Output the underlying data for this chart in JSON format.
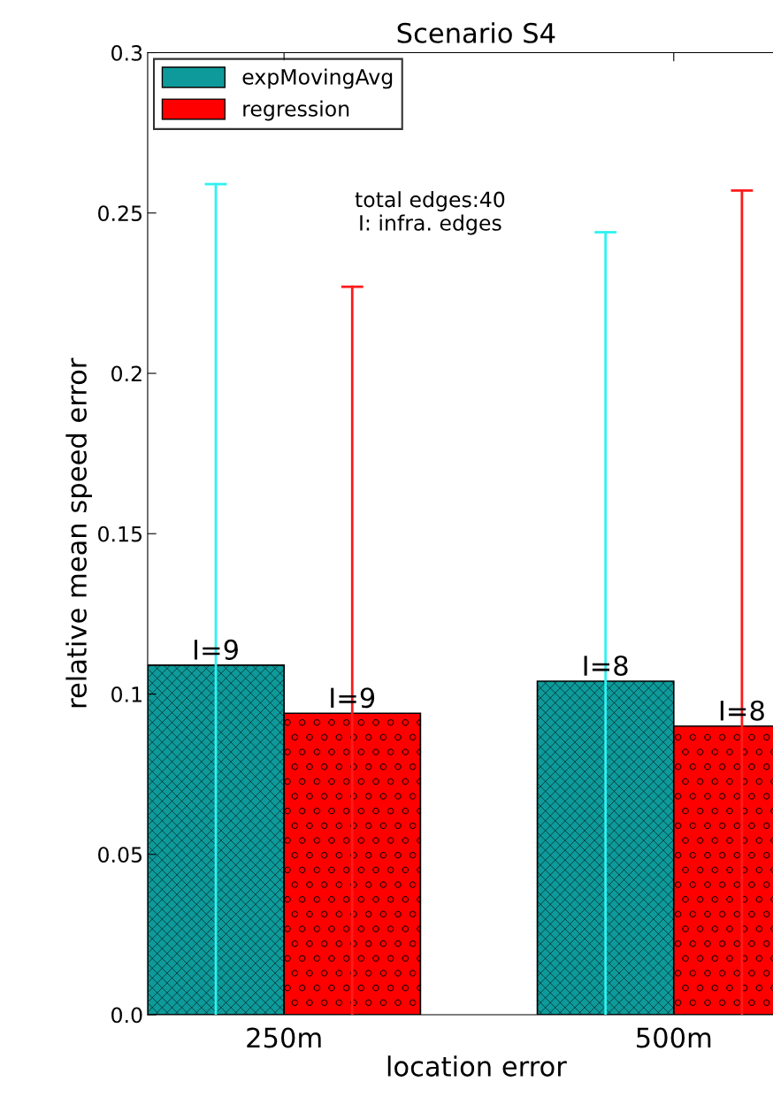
{
  "chart_data": {
    "type": "bar",
    "title": "Scenario S4",
    "xlabel": "location error",
    "ylabel": "relative mean speed error",
    "categories": [
      "250m",
      "500m"
    ],
    "series": [
      {
        "name": "expMovingAvg",
        "color": "#0e9a9a",
        "values": [
          0.109,
          0.104
        ],
        "errors": [
          [
            0.0,
            0.259
          ],
          [
            0.0,
            0.244
          ]
        ]
      },
      {
        "name": "regression",
        "color": "#ff0000",
        "values": [
          0.094,
          0.09
        ],
        "errors": [
          [
            0.0,
            0.227
          ],
          [
            0.0,
            0.257
          ]
        ]
      }
    ],
    "ylim": [
      0.0,
      0.3
    ],
    "yticks": [
      {
        "value": 0,
        "label": "0.0"
      },
      0.05,
      0.1,
      0.15,
      0.2,
      0.25,
      0.3
    ],
    "annotations": [
      "total edges:40\nI: infra. edges",
      {
        "text": "I=9",
        "x": "250m",
        "y": 0.109
      },
      {
        "text": "I=9",
        "x": "250m",
        "y": 0.094
      },
      {
        "text": "I=8",
        "x": "500m",
        "y": 0.104
      },
      {
        "text": "I=8",
        "x": "500m",
        "y": 0.09
      }
    ],
    "legend": "top left",
    "grid": false
  }
}
